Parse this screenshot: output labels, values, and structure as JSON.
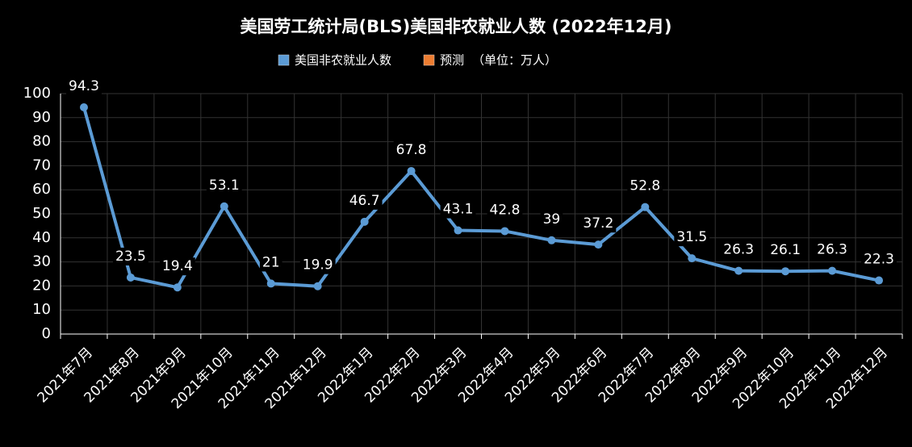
{
  "chart_data": {
    "type": "line",
    "title": "美国劳工统计局(BLS)美国非农就业人数 (2022年12月)",
    "unit_note": "（单位：万人）",
    "categories": [
      "2021年7月",
      "2021年8月",
      "2021年9月",
      "2021年10月",
      "2021年11月",
      "2021年12月",
      "2022年1月",
      "2022年2月",
      "2022年3月",
      "2022年4月",
      "2022年5月",
      "2022年6月",
      "2022年7月",
      "2022年8月",
      "2022年9月",
      "2022年10月",
      "2022年11月",
      "2022年12月"
    ],
    "series": [
      {
        "name": "美国非农就业人数",
        "color": "#5b9bd5",
        "values": [
          94.3,
          23.5,
          19.4,
          53.1,
          21,
          19.9,
          46.7,
          67.8,
          43.1,
          42.8,
          39,
          37.2,
          52.8,
          31.5,
          26.3,
          26.1,
          26.3,
          22.3
        ]
      },
      {
        "name": "预测",
        "color": "#ed7d31",
        "values": [
          null,
          null,
          null,
          null,
          null,
          null,
          null,
          null,
          null,
          null,
          null,
          null,
          null,
          null,
          null,
          null,
          null,
          null
        ]
      }
    ],
    "ylim": [
      0,
      100
    ],
    "yticks": [
      0,
      10,
      20,
      30,
      40,
      50,
      60,
      70,
      80,
      90,
      100
    ],
    "grid": true
  }
}
